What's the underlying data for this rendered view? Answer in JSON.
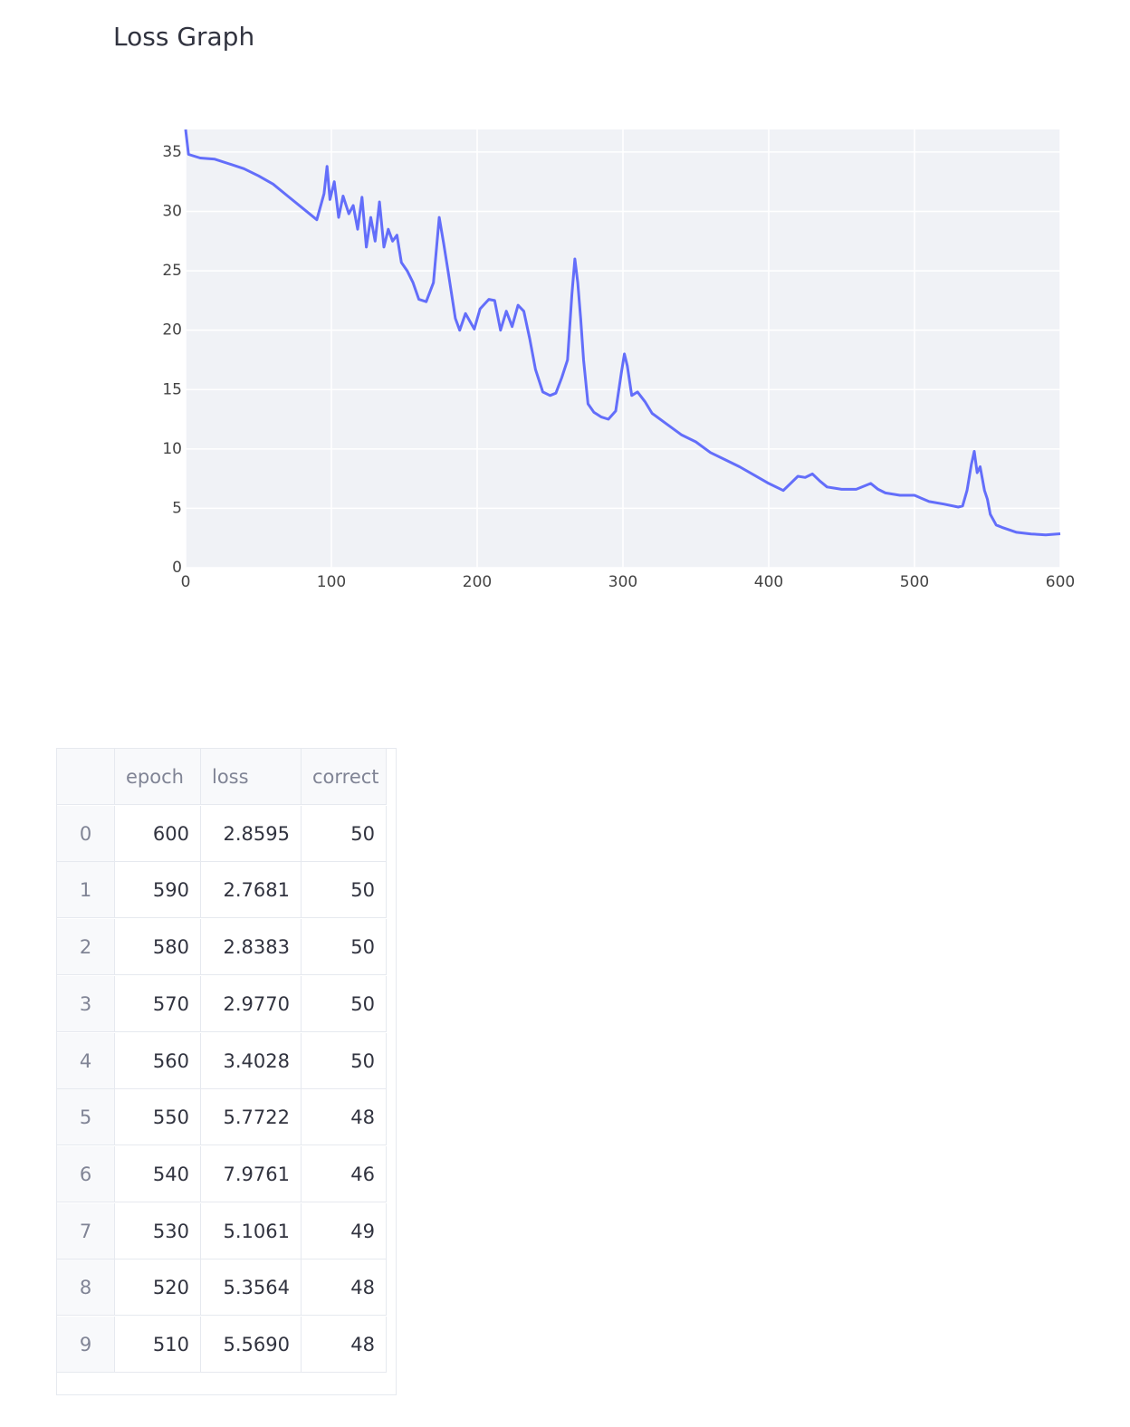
{
  "header": {
    "title": "Loss Graph"
  },
  "chart_data": {
    "type": "line",
    "color": "#636efa",
    "grid": true,
    "xlim": [
      0,
      600
    ],
    "xticks": [
      0,
      100,
      200,
      300,
      400,
      500,
      600
    ],
    "ylim": [
      0,
      36.9
    ],
    "yticks": [
      0,
      5,
      10,
      15,
      20,
      25,
      30,
      35
    ],
    "x": [
      0,
      2,
      10,
      20,
      30,
      40,
      50,
      60,
      70,
      80,
      90,
      95,
      97,
      99,
      102,
      105,
      108,
      112,
      115,
      118,
      121,
      124,
      127,
      130,
      133,
      136,
      139,
      142,
      145,
      148,
      152,
      156,
      160,
      165,
      170,
      174,
      177,
      180,
      185,
      188,
      192,
      198,
      202,
      208,
      212,
      216,
      220,
      224,
      228,
      232,
      236,
      240,
      245,
      250,
      254,
      258,
      262,
      265,
      267,
      269,
      271,
      273,
      276,
      280,
      285,
      290,
      295,
      299,
      301,
      303,
      306,
      310,
      315,
      320,
      330,
      340,
      350,
      360,
      370,
      380,
      390,
      400,
      410,
      415,
      420,
      425,
      430,
      435,
      440,
      450,
      460,
      470,
      475,
      480,
      490,
      500,
      510,
      520,
      530,
      533,
      536,
      539,
      541,
      543,
      545,
      548,
      550,
      552,
      556,
      560,
      570,
      580,
      590,
      600
    ],
    "values": [
      36.9,
      34.8,
      34.5,
      34.4,
      34,
      33.6,
      33,
      32.3,
      31.3,
      30.3,
      29.3,
      31.5,
      33.8,
      31,
      32.5,
      29.5,
      31.3,
      29.8,
      30.5,
      28.5,
      31.2,
      27,
      29.5,
      27.5,
      30.8,
      27,
      28.5,
      27.5,
      28,
      25.7,
      25,
      24,
      22.6,
      22.4,
      24,
      29.5,
      27.3,
      25,
      21,
      20,
      21.4,
      20.1,
      21.8,
      22.6,
      22.5,
      20,
      21.6,
      20.3,
      22.1,
      21.6,
      19.3,
      16.7,
      14.8,
      14.5,
      14.7,
      16,
      17.5,
      23,
      26,
      24,
      21,
      17.5,
      13.8,
      13.1,
      12.7,
      12.5,
      13.2,
      16.5,
      18,
      17,
      14.5,
      14.8,
      14,
      13,
      12.1,
      11.2,
      10.6,
      9.7,
      9.1,
      8.5,
      7.8,
      7.1,
      6.5,
      7.1,
      7.7,
      7.6,
      7.9,
      7.3,
      6.8,
      6.6,
      6.6,
      7.1,
      6.6,
      6.3,
      6.1,
      6.1,
      5.57,
      5.36,
      5.11,
      5.2,
      6.5,
      8.7,
      9.8,
      8.0,
      8.5,
      6.5,
      5.77,
      4.5,
      3.6,
      3.4,
      2.98,
      2.84,
      2.77,
      2.86
    ]
  },
  "table": {
    "columns": [
      "epoch",
      "loss",
      "correct"
    ],
    "rows": [
      [
        "0",
        "600",
        "2.8595",
        "50"
      ],
      [
        "1",
        "590",
        "2.7681",
        "50"
      ],
      [
        "2",
        "580",
        "2.8383",
        "50"
      ],
      [
        "3",
        "570",
        "2.9770",
        "50"
      ],
      [
        "4",
        "560",
        "3.4028",
        "50"
      ],
      [
        "5",
        "550",
        "5.7722",
        "48"
      ],
      [
        "6",
        "540",
        "7.9761",
        "46"
      ],
      [
        "7",
        "530",
        "5.1061",
        "49"
      ],
      [
        "8",
        "520",
        "5.3564",
        "48"
      ],
      [
        "9",
        "510",
        "5.5690",
        "48"
      ]
    ]
  }
}
